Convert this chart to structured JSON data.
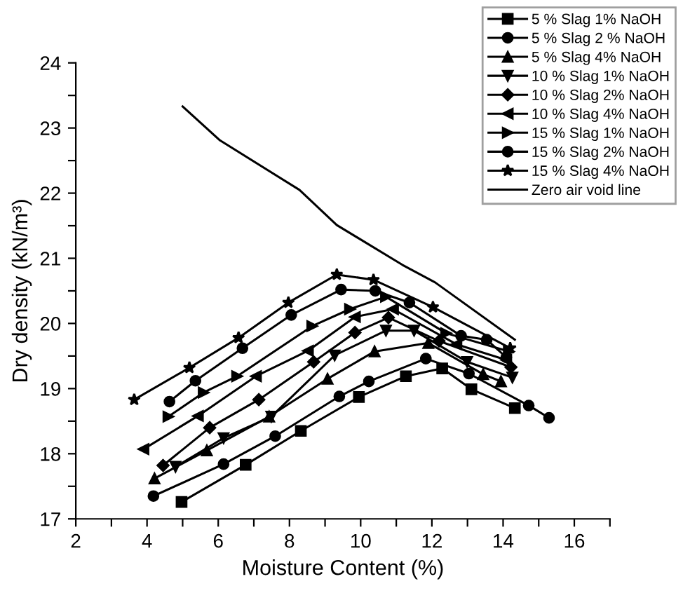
{
  "chart_data": {
    "type": "line",
    "xlabel": "Moisture Content (%)",
    "ylabel": "Dry density (kN/m³)",
    "xlim": [
      2,
      17
    ],
    "ylim": [
      17,
      24
    ],
    "xticks": [
      2,
      {
        "value": 3,
        "label": null
      },
      4,
      {
        "value": 5,
        "label": null
      },
      6,
      {
        "value": 7,
        "label": null
      },
      8,
      {
        "value": 9,
        "label": null
      },
      10,
      {
        "value": 11,
        "label": null
      },
      12,
      {
        "value": 13,
        "label": null
      },
      14,
      {
        "value": 15,
        "label": null
      },
      16,
      {
        "value": 17,
        "label": null
      }
    ],
    "yticks": [
      17,
      {
        "value": 17.5,
        "label": null
      },
      18,
      {
        "value": 18.5,
        "label": null
      },
      19,
      {
        "value": 19.5,
        "label": null
      },
      20,
      {
        "value": 20.5,
        "label": null
      },
      21,
      {
        "value": 21.5,
        "label": null
      },
      22,
      {
        "value": 22.5,
        "label": null
      },
      23,
      {
        "value": 23.5,
        "label": null
      },
      24
    ],
    "grid": false,
    "legend": "top right",
    "line_style": "solid",
    "series": [
      {
        "name": "5 % Slag 1% NaOH",
        "color": "#000000",
        "marker": "square",
        "x": [
          4.97,
          6.77,
          8.32,
          9.95,
          11.27,
          12.29,
          13.11,
          14.33
        ],
        "values": [
          17.26,
          17.83,
          18.35,
          18.87,
          19.19,
          19.31,
          18.99,
          18.7
        ]
      },
      {
        "name": "5 % Slag 2 % NaOH",
        "color": "#000000",
        "marker": "circle",
        "x": [
          4.18,
          6.15,
          7.6,
          9.4,
          10.23,
          11.83,
          13.04,
          14.72,
          15.29
        ],
        "values": [
          17.35,
          17.84,
          18.27,
          18.88,
          19.11,
          19.46,
          19.23,
          18.74,
          18.55
        ]
      },
      {
        "name": "5 % Slag 4% NaOH",
        "color": "#000000",
        "marker": "triangle",
        "x": [
          4.21,
          5.68,
          7.43,
          9.07,
          10.39,
          11.9,
          13.44,
          13.94
        ],
        "values": [
          17.62,
          18.05,
          18.57,
          19.15,
          19.57,
          19.7,
          19.22,
          19.11
        ]
      },
      {
        "name": "10 % Slag 1% NaOH",
        "color": "#000000",
        "marker": "triangle_down",
        "x": [
          4.8,
          6.15,
          7.49,
          9.27,
          10.71,
          11.5,
          12.99,
          14.26
        ],
        "values": [
          17.8,
          18.24,
          18.57,
          19.51,
          19.89,
          19.89,
          19.41,
          19.17
        ]
      },
      {
        "name": "10 % Slag 2% NaOH",
        "color": "#000000",
        "marker": "diamond",
        "x": [
          4.45,
          5.76,
          7.14,
          8.68,
          9.84,
          10.78,
          12.2,
          14.22
        ],
        "values": [
          17.82,
          18.4,
          18.83,
          19.41,
          19.86,
          20.09,
          19.73,
          19.33
        ]
      },
      {
        "name": "10 % Slag 4% NaOH",
        "color": "#000000",
        "marker": "triangle_left",
        "x": [
          3.9,
          5.43,
          7.06,
          8.52,
          9.84,
          10.91,
          12.69,
          14.09
        ],
        "values": [
          18.07,
          18.58,
          19.19,
          19.58,
          20.1,
          20.22,
          19.68,
          19.44
        ]
      },
      {
        "name": "15 % Slag 1% NaOH",
        "color": "#000000",
        "marker": "triangle_right",
        "x": [
          4.6,
          5.59,
          6.53,
          8.64,
          9.7,
          10.71,
          12.4,
          14.16
        ],
        "values": [
          18.57,
          18.94,
          19.19,
          19.96,
          20.22,
          20.41,
          19.85,
          19.57
        ]
      },
      {
        "name": "15 % Slag 2% NaOH",
        "color": "#000000",
        "marker": "circle",
        "x": [
          4.63,
          5.36,
          6.68,
          8.05,
          9.45,
          10.41,
          11.37,
          12.82,
          13.54,
          14.09
        ],
        "values": [
          18.8,
          19.12,
          19.62,
          20.13,
          20.52,
          20.5,
          20.32,
          19.81,
          19.75,
          19.48
        ]
      },
      {
        "name": "15 % Slag 4% NaOH",
        "color": "#000000",
        "marker": "star",
        "x": [
          3.64,
          5.19,
          6.57,
          7.97,
          9.33,
          10.36,
          12.03,
          14.2
        ],
        "values": [
          18.83,
          19.32,
          19.78,
          20.32,
          20.75,
          20.67,
          20.25,
          19.62
        ]
      },
      {
        "name": "Zero air void line",
        "color": "#000000",
        "marker": "none",
        "x": [
          5.0,
          6.05,
          8.28,
          9.33,
          11.17,
          12.09,
          14.33
        ],
        "values": [
          23.33,
          22.81,
          22.05,
          21.51,
          20.9,
          20.63,
          19.75
        ]
      }
    ]
  }
}
